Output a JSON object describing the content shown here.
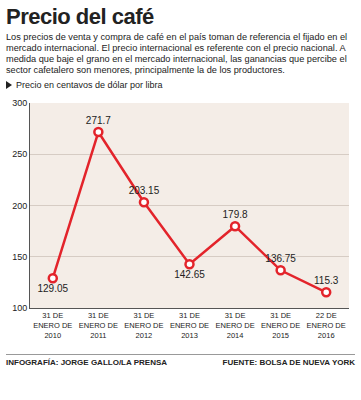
{
  "chart_data": {
    "type": "line",
    "title": "Precio del café",
    "subtitle": "Los precios de venta y compra de café en el país toman de referencia el fijado en el mercado internacional. El precio internacional es referente con el precio nacional. A medida que baje el grano en el mercado internacional, las ganancias que percibe el sector cafetalero son menores, principalmente la de los productores.",
    "ylabel": "Precio en centavos de dólar por libra",
    "categories": [
      "31 DE ENERO DE 2010",
      "31 DE ENERO DE 2011",
      "31 DE ENERO DE 2012",
      "31 DE ENERO DE 2013",
      "31 DE ENERO DE 2014",
      "31 DE ENERO DE 2015",
      "22 DE ENERO DE 2016"
    ],
    "values": [
      129.05,
      271.7,
      203.15,
      142.65,
      179.8,
      136.75,
      115.3
    ],
    "color": "#e3242b",
    "marker": "circle",
    "ylim": [
      100,
      300
    ],
    "yticks": [
      100,
      150,
      200,
      250,
      300
    ],
    "grid": true,
    "data_labels": true,
    "annotations": [
      "INFOGRAFÍA: JORGE GALLO/LA PRENSA",
      "FUENTE: BOLSA DE NUEVA YORK"
    ]
  }
}
